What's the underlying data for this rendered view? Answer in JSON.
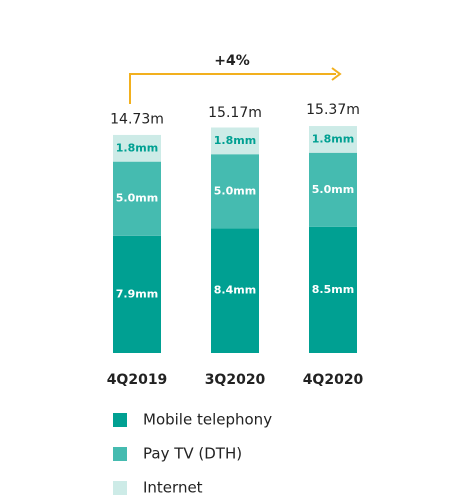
{
  "chart_data": {
    "type": "stacked-bar",
    "categories": [
      "4Q2019",
      "3Q2020",
      "4Q2020"
    ],
    "series": [
      {
        "name": "Mobile telephony",
        "color": "#00a092",
        "values": [
          7.9,
          8.4,
          8.5
        ],
        "value_labels": [
          "7.9mm",
          "8.4mm",
          "8.5mm"
        ]
      },
      {
        "name": "Pay TV (DTH)",
        "color": "#45bbb0",
        "values": [
          5.0,
          5.0,
          5.0
        ],
        "value_labels": [
          "5.0mm",
          "5.0mm",
          "5.0mm"
        ]
      },
      {
        "name": "Internet",
        "color": "#cdebe7",
        "values": [
          1.8,
          1.8,
          1.8
        ],
        "value_labels": [
          "1.8mm",
          "1.8mm",
          "1.8mm"
        ]
      }
    ],
    "totals": [
      14.73,
      15.17,
      15.37
    ],
    "total_labels": [
      "14.73m",
      "15.17m",
      "15.37m"
    ],
    "annotation": "+4%"
  }
}
